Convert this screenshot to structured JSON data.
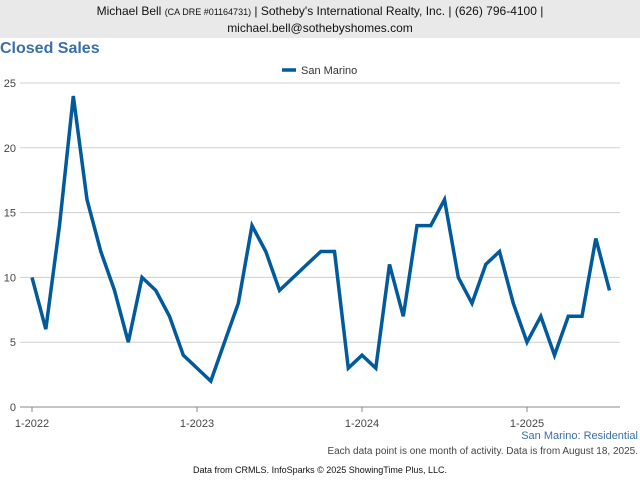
{
  "header": {
    "name": "Michael Bell",
    "license": "(CA DRE #01164731)",
    "company": "| Sotheby's International Realty, Inc. | (626) 796-4100 |",
    "email": "michael.bell@sothebyshomes.com"
  },
  "chart_title": "Closed Sales",
  "subtitle": "San Marino: Residential",
  "note": "Each data point is one month of activity. Data is from August 18, 2025.",
  "footer": "Data from CRMLS. InfoSparks © 2025 ShowingTime Plus, LLC.",
  "chart_data": {
    "type": "line",
    "title": "Closed Sales",
    "x_tick_labels": [
      "1-2022",
      "1-2023",
      "1-2024",
      "1-2025"
    ],
    "ylim": [
      0,
      25
    ],
    "y_ticks": [
      0,
      5,
      10,
      15,
      20,
      25
    ],
    "grid": true,
    "legend_position": "top-center",
    "series": [
      {
        "name": "San Marino",
        "color": "#005a9c",
        "x": [
          "2022-01",
          "2022-02",
          "2022-03",
          "2022-04",
          "2022-05",
          "2022-06",
          "2022-07",
          "2022-08",
          "2022-09",
          "2022-10",
          "2022-11",
          "2022-12",
          "2023-01",
          "2023-02",
          "2023-03",
          "2023-04",
          "2023-05",
          "2023-06",
          "2023-07",
          "2023-08",
          "2023-09",
          "2023-10",
          "2023-11",
          "2023-12",
          "2024-01",
          "2024-02",
          "2024-03",
          "2024-04",
          "2024-05",
          "2024-06",
          "2024-07",
          "2024-08",
          "2024-09",
          "2024-10",
          "2024-11",
          "2024-12",
          "2025-01",
          "2025-02",
          "2025-03",
          "2025-04",
          "2025-05",
          "2025-06",
          "2025-07"
        ],
        "values": [
          10,
          6,
          14,
          24,
          16,
          12,
          9,
          5,
          10,
          9,
          7,
          4,
          3,
          2,
          5,
          8,
          14,
          12,
          9,
          10,
          11,
          12,
          12,
          3,
          4,
          3,
          11,
          7,
          14,
          14,
          16,
          10,
          8,
          11,
          12,
          8,
          5,
          7,
          4,
          7,
          7,
          13,
          9
        ]
      }
    ]
  }
}
